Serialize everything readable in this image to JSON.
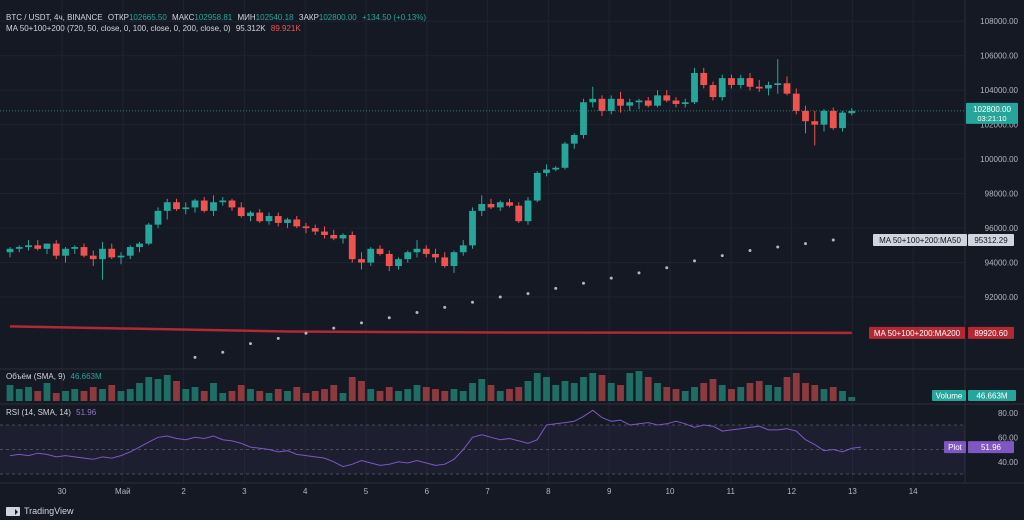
{
  "header": {
    "symbol": "BTC / USDT, 4ч, BINANCE",
    "open_label": "ОТКР",
    "open_value": "102665.50",
    "high_label": "МАКС",
    "high_value": "102958.81",
    "low_label": "МИН",
    "low_value": "102540.18",
    "close_label": "ЗАКР",
    "close_value": "102800.00",
    "change": "+134.50 (+0.13%)",
    "ma_title": "MA 50+100+200 (720, 50, close, 0, 100, close, 0, 200, close, 0)",
    "ma_val1": "95.312K",
    "ma_val2": "89.921K",
    "volume_title": "Объём (SMA, 9)",
    "volume_value": "46.663M",
    "rsi_title": "RSI (14, SMA, 14)",
    "rsi_value": "51.96"
  },
  "badges": {
    "price": "102800.00",
    "countdown": "03:21:10",
    "ma50": "MA 50+100+200:MA50",
    "ma50_value": "95312.29",
    "ma200": "MA 50+100+200:MA200",
    "ma200_value": "89920.60",
    "volume_label": "Volume",
    "volume_value": "46.663M",
    "plot_label": "Plot",
    "plot_value": "51.96"
  },
  "footer": {
    "brand": "TradingView"
  },
  "colors": {
    "up": "#26a69a",
    "down": "#ef5350",
    "bg": "#151924",
    "grid": "#1f2330",
    "ma200": "#b22833",
    "rsi": "#7e57c2"
  },
  "chart_data": {
    "type": "candlestick",
    "price_axis": {
      "ticks": [
        92000,
        94000,
        96000,
        98000,
        100000,
        102000,
        104000,
        106000,
        108000
      ],
      "range": [
        88000,
        109000
      ]
    },
    "x_axis_labels": [
      "30",
      "Май",
      "2",
      "3",
      "4",
      "5",
      "6",
      "7",
      "8",
      "9",
      "10",
      "11",
      "12",
      "13",
      "14"
    ],
    "candles": [
      {
        "o": 94600,
        "h": 94900,
        "l": 94300,
        "c": 94800
      },
      {
        "o": 94800,
        "h": 95000,
        "l": 94600,
        "c": 94900
      },
      {
        "o": 94900,
        "h": 95300,
        "l": 94700,
        "c": 95000
      },
      {
        "o": 95000,
        "h": 95300,
        "l": 94700,
        "c": 94800
      },
      {
        "o": 94800,
        "h": 95100,
        "l": 94500,
        "c": 95100
      },
      {
        "o": 95100,
        "h": 95300,
        "l": 94200,
        "c": 94400
      },
      {
        "o": 94400,
        "h": 94900,
        "l": 94000,
        "c": 94800
      },
      {
        "o": 94800,
        "h": 95000,
        "l": 94500,
        "c": 94900
      },
      {
        "o": 94900,
        "h": 95100,
        "l": 94300,
        "c": 94400
      },
      {
        "o": 94400,
        "h": 94700,
        "l": 93800,
        "c": 94200
      },
      {
        "o": 94200,
        "h": 95200,
        "l": 93000,
        "c": 94800
      },
      {
        "o": 94800,
        "h": 95100,
        "l": 94200,
        "c": 94300
      },
      {
        "o": 94300,
        "h": 94600,
        "l": 93900,
        "c": 94400
      },
      {
        "o": 94400,
        "h": 95000,
        "l": 94200,
        "c": 94900
      },
      {
        "o": 94900,
        "h": 95200,
        "l": 94600,
        "c": 95100
      },
      {
        "o": 95100,
        "h": 96300,
        "l": 95000,
        "c": 96200
      },
      {
        "o": 96200,
        "h": 97200,
        "l": 96000,
        "c": 97000
      },
      {
        "o": 97000,
        "h": 97700,
        "l": 96500,
        "c": 97500
      },
      {
        "o": 97500,
        "h": 97700,
        "l": 97000,
        "c": 97100
      },
      {
        "o": 97100,
        "h": 97500,
        "l": 96800,
        "c": 97200
      },
      {
        "o": 97200,
        "h": 97700,
        "l": 96900,
        "c": 97600
      },
      {
        "o": 97600,
        "h": 97800,
        "l": 96900,
        "c": 97000
      },
      {
        "o": 97000,
        "h": 97900,
        "l": 96700,
        "c": 97500
      },
      {
        "o": 97500,
        "h": 97800,
        "l": 97300,
        "c": 97600
      },
      {
        "o": 97600,
        "h": 97700,
        "l": 97000,
        "c": 97200
      },
      {
        "o": 97200,
        "h": 97500,
        "l": 96600,
        "c": 96700
      },
      {
        "o": 96700,
        "h": 97000,
        "l": 96400,
        "c": 96900
      },
      {
        "o": 96900,
        "h": 97100,
        "l": 96300,
        "c": 96400
      },
      {
        "o": 96400,
        "h": 96900,
        "l": 96200,
        "c": 96700
      },
      {
        "o": 96700,
        "h": 96900,
        "l": 96100,
        "c": 96300
      },
      {
        "o": 96300,
        "h": 96600,
        "l": 96000,
        "c": 96500
      },
      {
        "o": 96500,
        "h": 96700,
        "l": 96000,
        "c": 96100
      },
      {
        "o": 96100,
        "h": 96300,
        "l": 95700,
        "c": 96000
      },
      {
        "o": 96000,
        "h": 96200,
        "l": 95600,
        "c": 95800
      },
      {
        "o": 95800,
        "h": 96100,
        "l": 95400,
        "c": 95600
      },
      {
        "o": 95600,
        "h": 95900,
        "l": 95300,
        "c": 95400
      },
      {
        "o": 95400,
        "h": 95700,
        "l": 95100,
        "c": 95600
      },
      {
        "o": 95600,
        "h": 95800,
        "l": 94000,
        "c": 94200
      },
      {
        "o": 94200,
        "h": 94600,
        "l": 93600,
        "c": 94000
      },
      {
        "o": 94000,
        "h": 94900,
        "l": 93800,
        "c": 94800
      },
      {
        "o": 94800,
        "h": 95000,
        "l": 94400,
        "c": 94500
      },
      {
        "o": 94500,
        "h": 94700,
        "l": 93500,
        "c": 93800
      },
      {
        "o": 93800,
        "h": 94300,
        "l": 93600,
        "c": 94200
      },
      {
        "o": 94200,
        "h": 94700,
        "l": 94000,
        "c": 94600
      },
      {
        "o": 94600,
        "h": 95300,
        "l": 94300,
        "c": 94800
      },
      {
        "o": 94800,
        "h": 95000,
        "l": 94300,
        "c": 94500
      },
      {
        "o": 94500,
        "h": 94800,
        "l": 94000,
        "c": 94300
      },
      {
        "o": 94300,
        "h": 94600,
        "l": 93700,
        "c": 93800
      },
      {
        "o": 93800,
        "h": 94700,
        "l": 93400,
        "c": 94600
      },
      {
        "o": 94600,
        "h": 95300,
        "l": 94400,
        "c": 95000
      },
      {
        "o": 95000,
        "h": 97200,
        "l": 94800,
        "c": 97000
      },
      {
        "o": 97000,
        "h": 97900,
        "l": 96700,
        "c": 97400
      },
      {
        "o": 97400,
        "h": 97700,
        "l": 97100,
        "c": 97200
      },
      {
        "o": 97200,
        "h": 97600,
        "l": 97000,
        "c": 97500
      },
      {
        "o": 97500,
        "h": 97700,
        "l": 97200,
        "c": 97300
      },
      {
        "o": 97300,
        "h": 97500,
        "l": 96300,
        "c": 96400
      },
      {
        "o": 96400,
        "h": 97800,
        "l": 96200,
        "c": 97600
      },
      {
        "o": 97600,
        "h": 99300,
        "l": 97500,
        "c": 99200
      },
      {
        "o": 99200,
        "h": 99700,
        "l": 99000,
        "c": 99400
      },
      {
        "o": 99400,
        "h": 99600,
        "l": 99300,
        "c": 99500
      },
      {
        "o": 99500,
        "h": 101000,
        "l": 99400,
        "c": 100900
      },
      {
        "o": 100900,
        "h": 101500,
        "l": 100600,
        "c": 101400
      },
      {
        "o": 101400,
        "h": 103500,
        "l": 101200,
        "c": 103300
      },
      {
        "o": 103300,
        "h": 104200,
        "l": 103000,
        "c": 103500
      },
      {
        "o": 103500,
        "h": 103700,
        "l": 102500,
        "c": 102800
      },
      {
        "o": 102800,
        "h": 103700,
        "l": 102600,
        "c": 103500
      },
      {
        "o": 103500,
        "h": 103900,
        "l": 102700,
        "c": 103100
      },
      {
        "o": 103100,
        "h": 103500,
        "l": 102800,
        "c": 103300
      },
      {
        "o": 103300,
        "h": 103500,
        "l": 102900,
        "c": 103400
      },
      {
        "o": 103400,
        "h": 103600,
        "l": 103000,
        "c": 103100
      },
      {
        "o": 103100,
        "h": 104000,
        "l": 103000,
        "c": 103700
      },
      {
        "o": 103700,
        "h": 104000,
        "l": 103300,
        "c": 103400
      },
      {
        "o": 103400,
        "h": 103600,
        "l": 103000,
        "c": 103200
      },
      {
        "o": 103200,
        "h": 103500,
        "l": 103000,
        "c": 103300
      },
      {
        "o": 103300,
        "h": 105300,
        "l": 103200,
        "c": 105000
      },
      {
        "o": 105000,
        "h": 105300,
        "l": 104100,
        "c": 104300
      },
      {
        "o": 104300,
        "h": 104500,
        "l": 103400,
        "c": 103600
      },
      {
        "o": 103600,
        "h": 104900,
        "l": 103400,
        "c": 104700
      },
      {
        "o": 104700,
        "h": 104900,
        "l": 104100,
        "c": 104300
      },
      {
        "o": 104300,
        "h": 104900,
        "l": 104100,
        "c": 104700
      },
      {
        "o": 104700,
        "h": 105000,
        "l": 104000,
        "c": 104200
      },
      {
        "o": 104200,
        "h": 104600,
        "l": 103900,
        "c": 104100
      },
      {
        "o": 104100,
        "h": 104500,
        "l": 103700,
        "c": 104300
      },
      {
        "o": 104300,
        "h": 105800,
        "l": 103800,
        "c": 104400
      },
      {
        "o": 104400,
        "h": 104800,
        "l": 103700,
        "c": 103800
      },
      {
        "o": 103800,
        "h": 104100,
        "l": 102600,
        "c": 102800
      },
      {
        "o": 102800,
        "h": 103100,
        "l": 101500,
        "c": 102200
      },
      {
        "o": 102200,
        "h": 102800,
        "l": 100800,
        "c": 102000
      },
      {
        "o": 102000,
        "h": 102900,
        "l": 101600,
        "c": 102800
      },
      {
        "o": 102800,
        "h": 103000,
        "l": 101700,
        "c": 101800
      },
      {
        "o": 101800,
        "h": 102800,
        "l": 101600,
        "c": 102700
      },
      {
        "o": 102665,
        "h": 102959,
        "l": 102540,
        "c": 102800
      }
    ],
    "ma200": [
      [
        0,
        90300
      ],
      [
        30,
        90000
      ],
      [
        50,
        89950
      ],
      [
        91,
        89921
      ]
    ],
    "ma50_dots": [
      [
        20,
        88500
      ],
      [
        23,
        88800
      ],
      [
        26,
        89300
      ],
      [
        29,
        89600
      ],
      [
        32,
        89900
      ],
      [
        35,
        90200
      ],
      [
        38,
        90500
      ],
      [
        41,
        90800
      ],
      [
        44,
        91100
      ],
      [
        47,
        91400
      ],
      [
        50,
        91700
      ],
      [
        53,
        92000
      ],
      [
        56,
        92200
      ],
      [
        59,
        92500
      ],
      [
        62,
        92800
      ],
      [
        65,
        93100
      ],
      [
        68,
        93400
      ],
      [
        71,
        93700
      ],
      [
        74,
        94100
      ],
      [
        77,
        94400
      ],
      [
        80,
        94700
      ],
      [
        83,
        94900
      ],
      [
        86,
        95100
      ],
      [
        89,
        95312
      ]
    ],
    "volume": [
      8,
      6,
      7,
      5,
      9,
      4,
      5,
      6,
      5,
      7,
      6,
      8,
      5,
      6,
      9,
      12,
      11,
      13,
      10,
      6,
      7,
      5,
      9,
      4,
      5,
      8,
      6,
      5,
      4,
      6,
      5,
      7,
      4,
      5,
      6,
      8,
      4,
      12,
      10,
      6,
      5,
      7,
      5,
      6,
      8,
      7,
      6,
      5,
      6,
      5,
      9,
      11,
      8,
      5,
      6,
      7,
      10,
      14,
      12,
      8,
      10,
      9,
      12,
      14,
      13,
      9,
      8,
      14,
      15,
      12,
      9,
      7,
      6,
      5,
      7,
      9,
      11,
      8,
      6,
      7,
      9,
      10,
      8,
      7,
      12,
      14,
      9,
      8,
      6,
      7,
      5,
      2
    ],
    "rsi": [
      45,
      46,
      45,
      47,
      46,
      44,
      45,
      44,
      43,
      42,
      44,
      43,
      45,
      48,
      52,
      56,
      60,
      61,
      59,
      58,
      60,
      59,
      61,
      58,
      57,
      55,
      52,
      51,
      50,
      48,
      49,
      46,
      45,
      44,
      43,
      40,
      36,
      38,
      41,
      39,
      37,
      38,
      40,
      39,
      41,
      39,
      37,
      38,
      42,
      50,
      60,
      62,
      60,
      58,
      59,
      57,
      55,
      58,
      70,
      71,
      72,
      73,
      77,
      82,
      76,
      73,
      74,
      70,
      71,
      72,
      70,
      71,
      73,
      71,
      68,
      70,
      69,
      65,
      66,
      67,
      68,
      69,
      66,
      66,
      67,
      65,
      58,
      54,
      49,
      50,
      48,
      51,
      52
    ]
  }
}
